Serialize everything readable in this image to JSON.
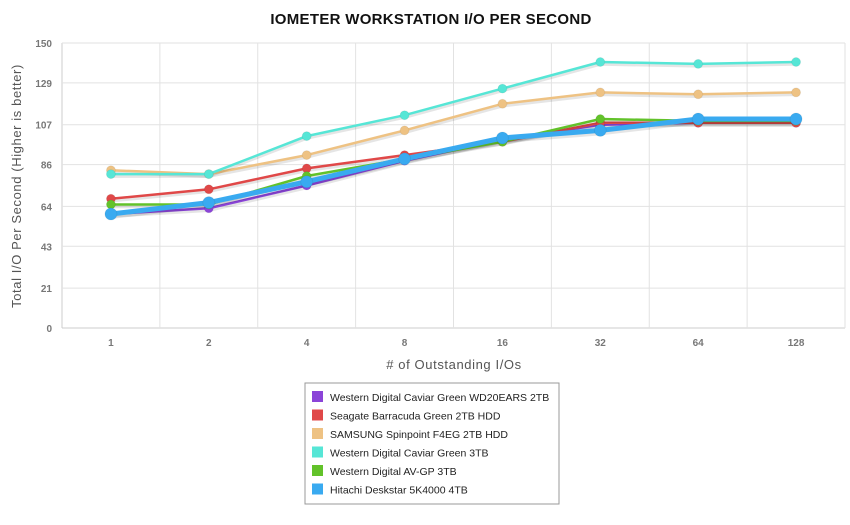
{
  "chart_data": {
    "type": "line",
    "title": "IOMETER WORKSTATION I/O PER SECOND",
    "xlabel": "# of Outstanding I/Os",
    "ylabel": "Total I/O Per Second (Higher is better)",
    "categories": [
      "1",
      "2",
      "4",
      "8",
      "16",
      "32",
      "64",
      "128"
    ],
    "yticks": [
      "0",
      "21",
      "43",
      "64",
      "86",
      "107",
      "129",
      "150"
    ],
    "ylim": [
      0,
      150
    ],
    "grid": true,
    "legend_position": "bottom-center",
    "series": [
      {
        "name": "Western Digital Caviar Green WD20EARS 2TB",
        "color": "#8b44d8",
        "values": [
          60,
          63,
          75,
          88,
          99,
          107,
          108,
          108
        ]
      },
      {
        "name": "Seagate Barracuda Green 2TB HDD",
        "color": "#e04848",
        "values": [
          68,
          73,
          84,
          91,
          98,
          108,
          108,
          108
        ]
      },
      {
        "name": "SAMSUNG Spinpoint F4EG 2TB HDD",
        "color": "#eec283",
        "values": [
          83,
          81,
          91,
          104,
          118,
          124,
          123,
          124
        ]
      },
      {
        "name": "Western Digital Caviar Green 3TB",
        "color": "#56e6d6",
        "values": [
          81,
          81,
          101,
          112,
          126,
          140,
          139,
          140
        ]
      },
      {
        "name": "Western Digital AV-GP 3TB",
        "color": "#62c22a",
        "values": [
          65,
          65,
          80,
          89,
          98,
          110,
          109,
          109
        ]
      },
      {
        "name": "Hitachi Deskstar 5K4000 4TB",
        "color": "#39aaf0",
        "values": [
          60,
          66,
          77,
          89,
          100,
          104,
          110,
          110
        ]
      }
    ]
  }
}
